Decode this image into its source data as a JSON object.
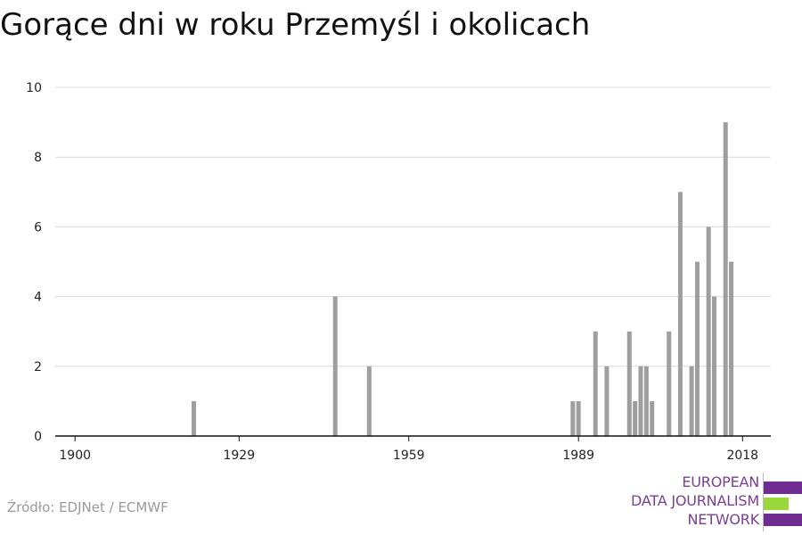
{
  "colors": {
    "bar": "#9e9e9e",
    "grid": "#d9d9d9",
    "axis": "#111111",
    "logo_purple": "#6f2c91",
    "logo_green": "#9bd63b"
  },
  "logo": {
    "line1": "EUROPEAN",
    "line2": "DATA JOURNALISM",
    "line3": "NETWORK"
  },
  "source": "Źródło: EDJNet / ECMWF",
  "chart_data": {
    "type": "bar",
    "title": "Gorące dni w roku Przemyśl i okolicach",
    "xlabel": "",
    "ylabel": "",
    "xlim": [
      1900,
      2018
    ],
    "ylim": [
      0,
      10
    ],
    "x_ticks": [
      1900,
      1929,
      1959,
      1989,
      2018
    ],
    "y_ticks": [
      0,
      2,
      4,
      6,
      8,
      10
    ],
    "grid": true,
    "x": [
      1921,
      1946,
      1952,
      1988,
      1989,
      1992,
      1994,
      1998,
      1999,
      2000,
      2001,
      2002,
      2005,
      2007,
      2009,
      2010,
      2012,
      2013,
      2015,
      2016
    ],
    "values": [
      1,
      4,
      2,
      1,
      1,
      3,
      2,
      3,
      1,
      2,
      2,
      1,
      3,
      7,
      2,
      5,
      6,
      4,
      9,
      5
    ]
  }
}
